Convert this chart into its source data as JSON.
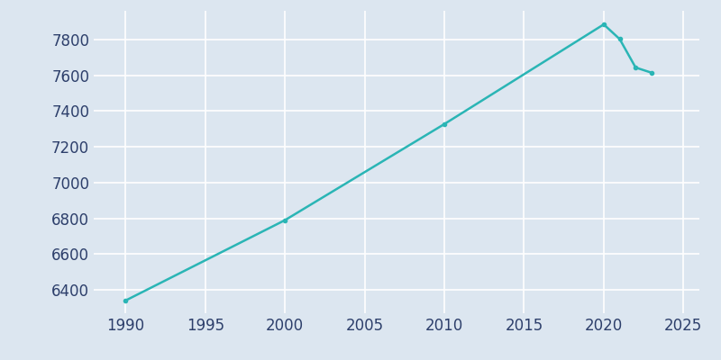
{
  "years": [
    1990,
    2000,
    2010,
    2020,
    2021,
    2022,
    2023
  ],
  "population": [
    6341,
    6790,
    7327,
    7884,
    7802,
    7643,
    7614
  ],
  "line_color": "#2ab5b5",
  "marker": "o",
  "marker_size": 3,
  "line_width": 1.8,
  "bg_color": "#dce6f0",
  "fig_bg_color": "#dce6f0",
  "xlim": [
    1988,
    2026
  ],
  "ylim": [
    6270,
    7960
  ],
  "xticks": [
    1990,
    1995,
    2000,
    2005,
    2010,
    2015,
    2020,
    2025
  ],
  "yticks": [
    6400,
    6600,
    6800,
    7000,
    7200,
    7400,
    7600,
    7800
  ],
  "tick_color": "#2d3f6b",
  "tick_fontsize": 12,
  "grid_color": "#ffffff",
  "grid_linewidth": 1.2
}
